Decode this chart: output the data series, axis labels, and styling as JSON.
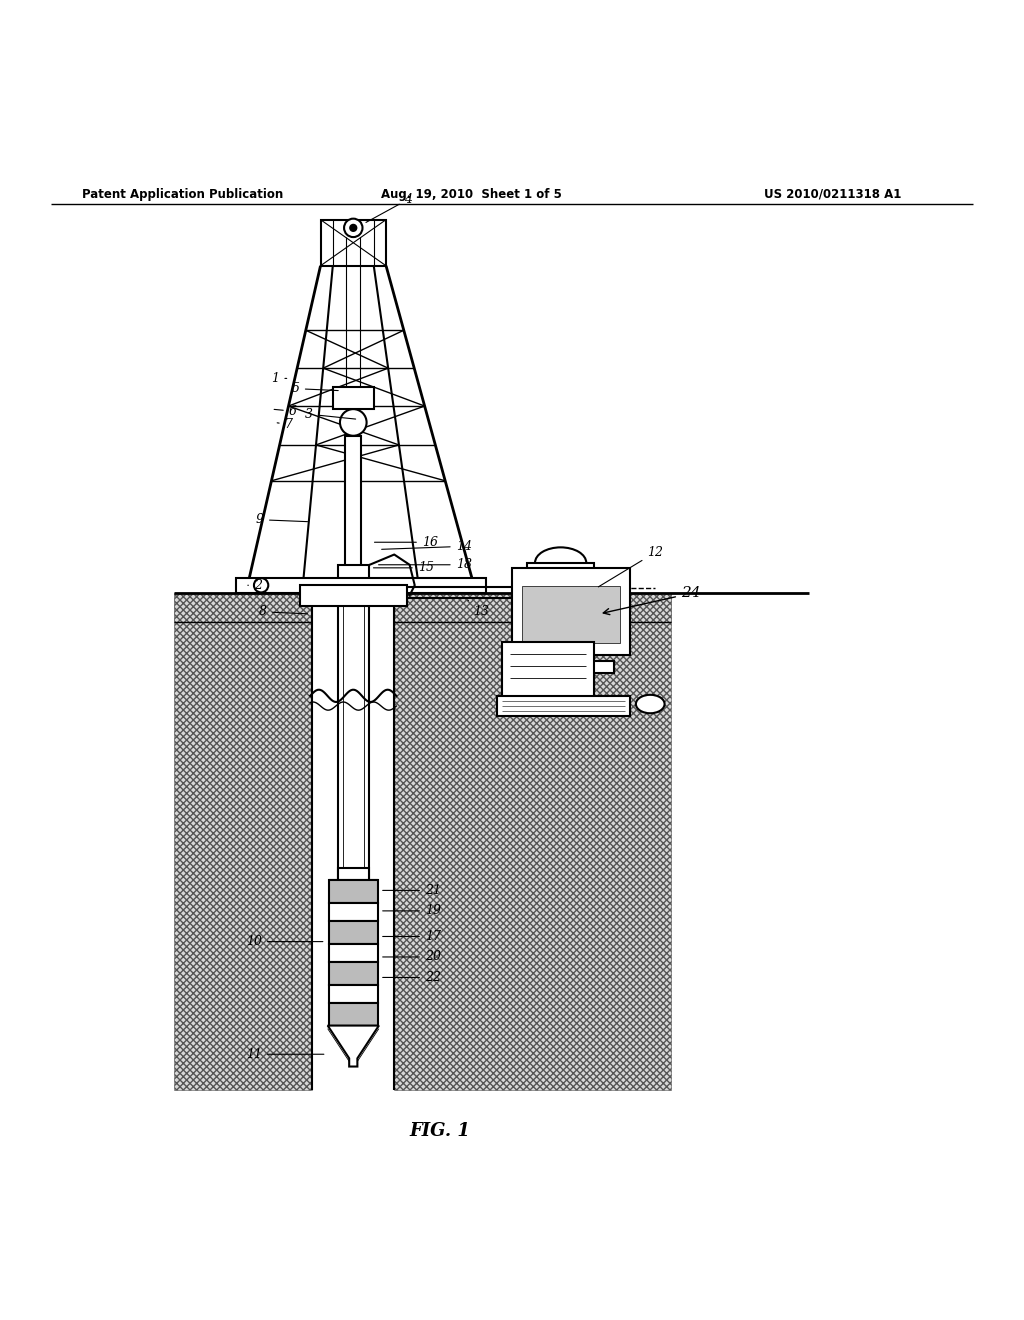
{
  "bg_color": "#ffffff",
  "line_color": "#000000",
  "header_left": "Patent Application Publication",
  "header_center": "Aug. 19, 2010  Sheet 1 of 5",
  "header_right": "US 2010/0211318 A1",
  "figure_label": "FIG. 1"
}
